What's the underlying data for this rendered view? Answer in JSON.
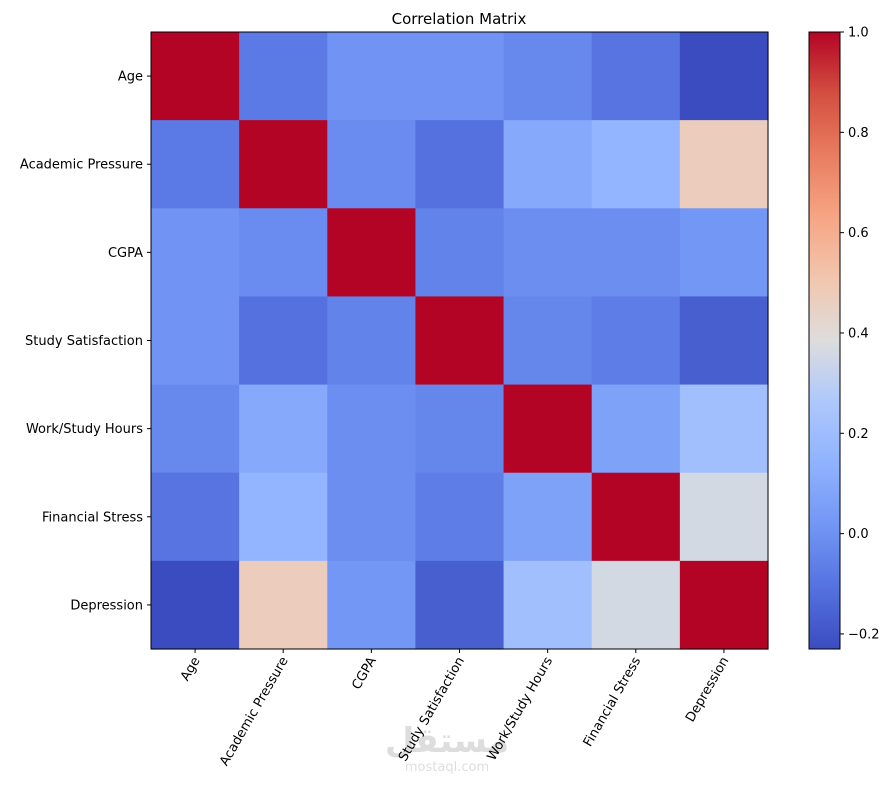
{
  "chart_data": {
    "type": "heatmap",
    "title": "Correlation Matrix",
    "colormap": "coolwarm",
    "rows": [
      "Age",
      "Academic Pressure",
      "CGPA",
      "Study Satisfaction",
      "Work/Study Hours",
      "Financial Stress",
      "Depression"
    ],
    "columns": [
      "Age",
      "Academic Pressure",
      "CGPA",
      "Study Satisfaction",
      "Work/Study Hours",
      "Financial Stress",
      "Depression"
    ],
    "values": [
      [
        1.0,
        -0.08,
        0.01,
        0.01,
        -0.03,
        -0.1,
        -0.23
      ],
      [
        -0.08,
        1.0,
        -0.02,
        -0.11,
        0.1,
        0.15,
        0.47
      ],
      [
        0.01,
        -0.02,
        1.0,
        -0.05,
        -0.01,
        -0.01,
        0.02
      ],
      [
        0.01,
        -0.11,
        -0.05,
        1.0,
        -0.04,
        -0.07,
        -0.17
      ],
      [
        -0.03,
        0.1,
        -0.01,
        -0.04,
        1.0,
        0.07,
        0.21
      ],
      [
        -0.1,
        0.15,
        -0.01,
        -0.07,
        0.07,
        1.0,
        0.36
      ],
      [
        -0.23,
        0.47,
        0.02,
        -0.17,
        0.21,
        0.36,
        1.0
      ]
    ],
    "colorbar": {
      "vmin": -0.23,
      "vmax": 1.0,
      "ticks": [
        -0.2,
        0.0,
        0.2,
        0.4,
        0.6,
        0.8,
        1.0
      ],
      "tick_labels": [
        "−0.2",
        "0.0",
        "0.2",
        "0.4",
        "0.6",
        "0.8",
        "1.0"
      ]
    },
    "x_tick_rotation": 60,
    "grid": false,
    "legend": "colorbar-right"
  },
  "watermark": {
    "arabic": "مستقل",
    "latin": "mostaql.com"
  }
}
